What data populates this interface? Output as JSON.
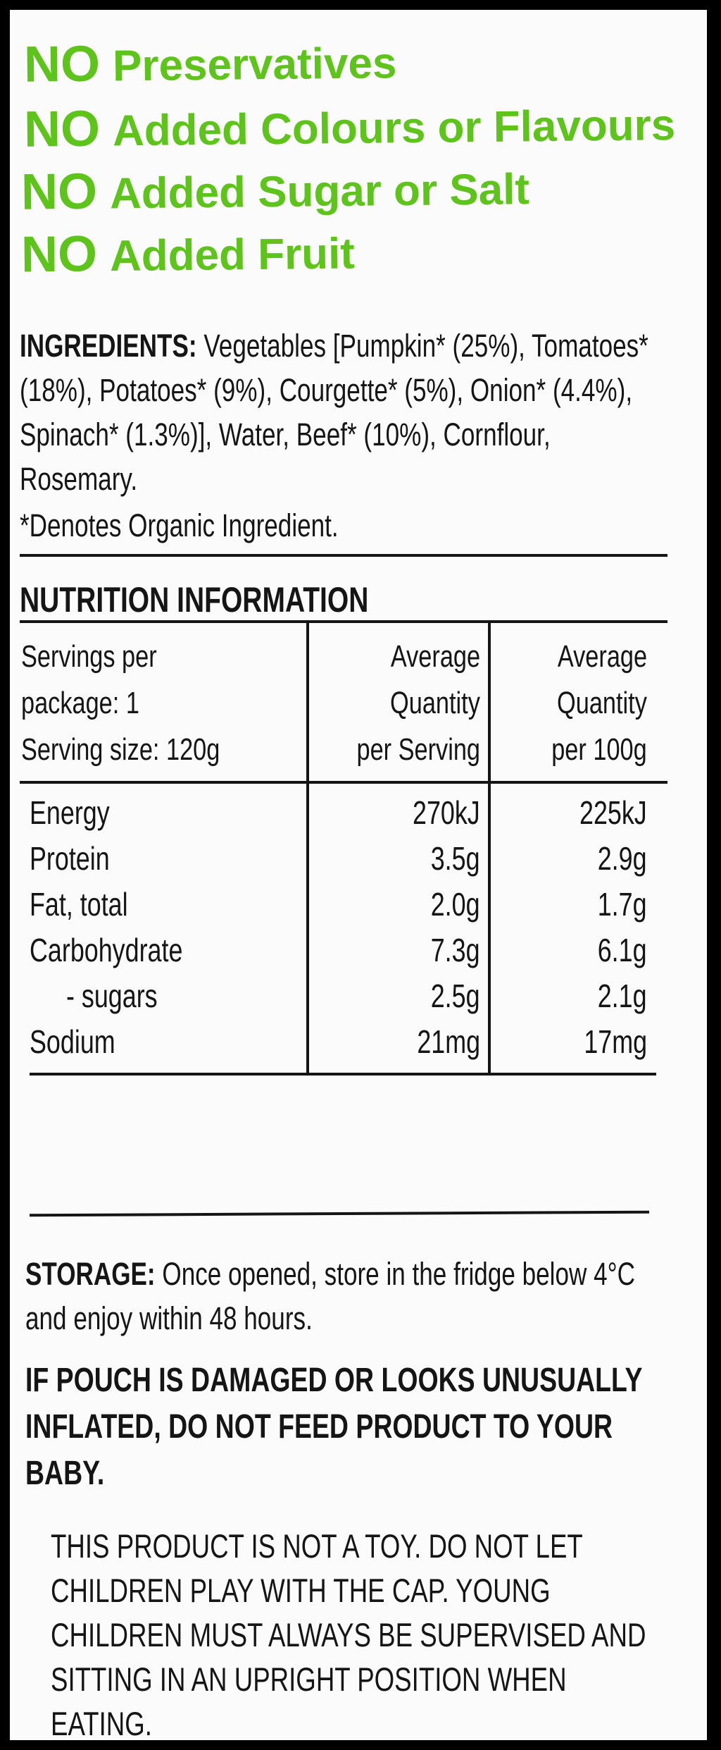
{
  "claims": [
    {
      "no": "NO",
      "text": "Preservatives"
    },
    {
      "no": "NO",
      "text": "Added Colours or Flavours"
    },
    {
      "no": "NO",
      "text": "Added Sugar or Salt"
    },
    {
      "no": "NO",
      "text": "Added Fruit"
    }
  ],
  "ingredients": {
    "label": "INGREDIENTS:",
    "text": "Vegetables [Pumpkin* (25%), Tomatoes* (18%), Potatoes* (9%), Courgette* (5%), Onion* (4.4%), Spinach* (1.3%)], Water, Beef* (10%), Cornflour, Rosemary.",
    "note": "*Denotes Organic Ingredient."
  },
  "nutrition": {
    "title": "NUTRITION INFORMATION",
    "header": [
      [
        "Servings per",
        "package: 1",
        "Serving size: 120g"
      ],
      [
        "Average",
        "Quantity",
        "per Serving"
      ],
      [
        "Average",
        "Quantity",
        "per 100g"
      ]
    ],
    "rows": [
      [
        "Energy",
        "270kJ",
        "225kJ"
      ],
      [
        "Protein",
        "3.5g",
        "2.9g"
      ],
      [
        "Fat, total",
        "2.0g",
        "1.7g"
      ],
      [
        "Carbohydrate",
        "7.3g",
        "6.1g"
      ],
      [
        "- sugars",
        "2.5g",
        "2.1g"
      ],
      [
        "Sodium",
        "21mg",
        "17mg"
      ]
    ]
  },
  "storage": {
    "label": "STORAGE:",
    "text": "Once opened, store in the fridge below 4°C and enjoy within 48 hours."
  },
  "warning": "IF POUCH IS DAMAGED OR LOOKS UNUSUALLY INFLATED, DO NOT FEED PRODUCT TO YOUR BABY.",
  "toy_warning": "THIS PRODUCT IS NOT A TOY. DO NOT LET CHILDREN PLAY WITH THE CAP. YOUNG CHILDREN MUST ALWAYS BE SUPERVISED AND SITTING IN AN UPRIGHT POSITION WHEN EATING."
}
